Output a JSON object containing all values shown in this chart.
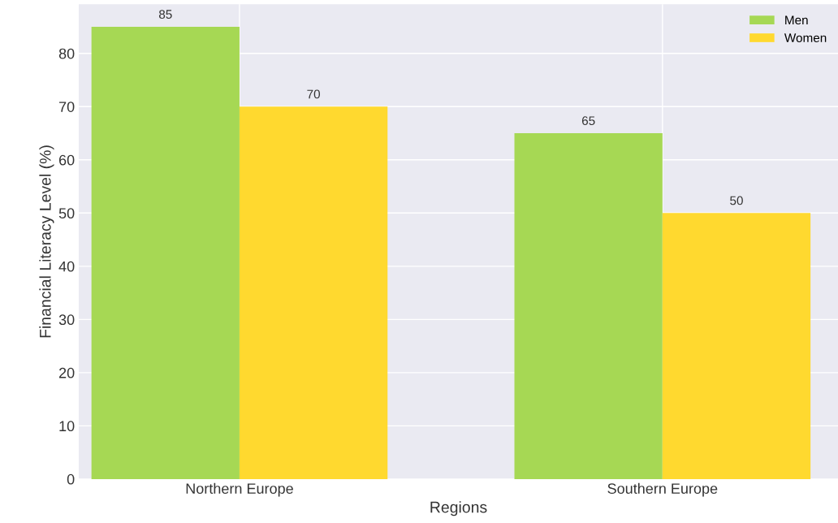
{
  "chart_data": {
    "type": "bar",
    "xlabel": "Regions",
    "ylabel": "Financial Literacy Level (%)",
    "categories": [
      "Northern Europe",
      "Southern Europe"
    ],
    "series": [
      {
        "name": "Men",
        "color": "#a6d854",
        "values": [
          85,
          65
        ]
      },
      {
        "name": "Women",
        "color": "#ffd92f",
        "values": [
          70,
          50
        ]
      }
    ],
    "ylim": [
      0,
      89.25
    ],
    "yticks": [
      0,
      10,
      20,
      30,
      40,
      50,
      60,
      70,
      80
    ],
    "grid": true,
    "legend": "top right",
    "data_labels": true
  }
}
